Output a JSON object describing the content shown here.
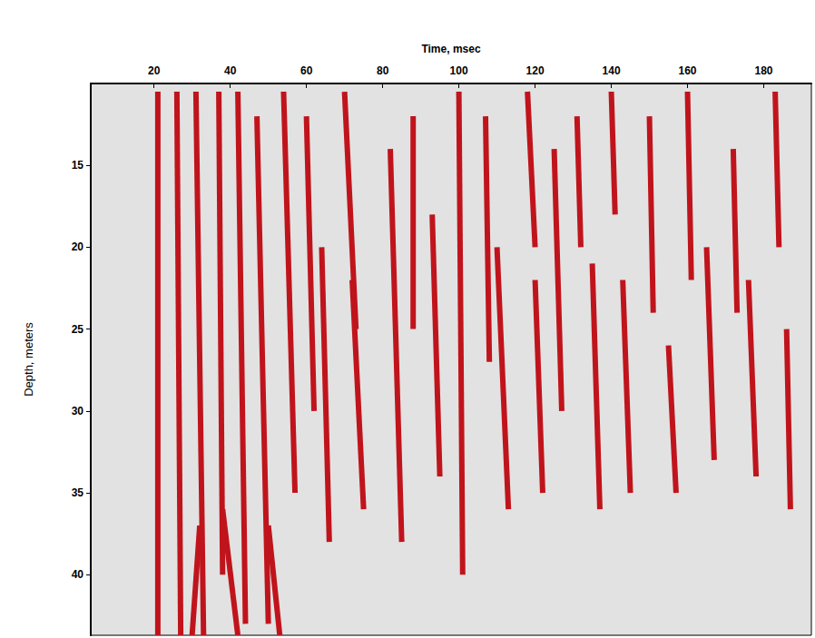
{
  "chart_data": {
    "type": "seismic",
    "x_label": "Time, msec",
    "y_label": "Depth, meters",
    "xlim": [
      3.4,
      192.5
    ],
    "xticks": [
      20,
      40,
      60,
      80,
      100,
      120,
      140,
      160,
      180
    ],
    "ylim": [
      10,
      43.7
    ],
    "yticks": [
      15,
      20,
      25,
      30,
      35,
      40
    ],
    "grid": false,
    "color": "#c0141c",
    "events": [
      {
        "time": [
          21,
          21
        ],
        "depth": [
          10.5,
          43.7
        ]
      },
      {
        "time": [
          26,
          27
        ],
        "depth": [
          10.5,
          43.7
        ]
      },
      {
        "time": [
          31,
          33
        ],
        "depth": [
          10.5,
          43.7
        ]
      },
      {
        "time": [
          37,
          38
        ],
        "depth": [
          10.5,
          40
        ]
      },
      {
        "time": [
          42,
          44
        ],
        "depth": [
          10.5,
          43
        ]
      },
      {
        "time": [
          47,
          50
        ],
        "depth": [
          12,
          43
        ]
      },
      {
        "time": [
          54,
          57
        ],
        "depth": [
          10.5,
          35
        ]
      },
      {
        "time": [
          60,
          62
        ],
        "depth": [
          12,
          30
        ]
      },
      {
        "time": [
          64,
          66
        ],
        "depth": [
          20,
          38
        ]
      },
      {
        "time": [
          70,
          73
        ],
        "depth": [
          10.5,
          25
        ]
      },
      {
        "time": [
          72,
          75
        ],
        "depth": [
          22,
          36
        ]
      },
      {
        "time": [
          82,
          85
        ],
        "depth": [
          14,
          38
        ]
      },
      {
        "time": [
          88,
          88
        ],
        "depth": [
          12,
          25
        ]
      },
      {
        "time": [
          93,
          95
        ],
        "depth": [
          18,
          34
        ]
      },
      {
        "time": [
          100,
          101
        ],
        "depth": [
          10.5,
          40
        ]
      },
      {
        "time": [
          107,
          108
        ],
        "depth": [
          12,
          27
        ]
      },
      {
        "time": [
          110,
          113
        ],
        "depth": [
          20,
          36
        ]
      },
      {
        "time": [
          118,
          120
        ],
        "depth": [
          10.5,
          20
        ]
      },
      {
        "time": [
          120,
          122
        ],
        "depth": [
          22,
          35
        ]
      },
      {
        "time": [
          125,
          127
        ],
        "depth": [
          14,
          30
        ]
      },
      {
        "time": [
          131,
          132
        ],
        "depth": [
          12,
          20
        ]
      },
      {
        "time": [
          135,
          137
        ],
        "depth": [
          21,
          36
        ]
      },
      {
        "time": [
          140,
          141
        ],
        "depth": [
          10.5,
          18
        ]
      },
      {
        "time": [
          143,
          145
        ],
        "depth": [
          22,
          35
        ]
      },
      {
        "time": [
          150,
          151
        ],
        "depth": [
          12,
          24
        ]
      },
      {
        "time": [
          155,
          157
        ],
        "depth": [
          26,
          35
        ]
      },
      {
        "time": [
          160,
          161
        ],
        "depth": [
          10.5,
          22
        ]
      },
      {
        "time": [
          165,
          167
        ],
        "depth": [
          20,
          33
        ]
      },
      {
        "time": [
          172,
          173
        ],
        "depth": [
          14,
          24
        ]
      },
      {
        "time": [
          176,
          178
        ],
        "depth": [
          22,
          34
        ]
      },
      {
        "time": [
          183,
          184
        ],
        "depth": [
          10.5,
          20
        ]
      },
      {
        "time": [
          186,
          187
        ],
        "depth": [
          25,
          36
        ]
      },
      {
        "time": [
          38,
          42
        ],
        "depth": [
          36,
          43.7
        ]
      },
      {
        "time": [
          50,
          53
        ],
        "depth": [
          37,
          43.7
        ]
      },
      {
        "time": [
          32,
          30
        ],
        "depth": [
          37,
          43.7
        ]
      }
    ]
  }
}
